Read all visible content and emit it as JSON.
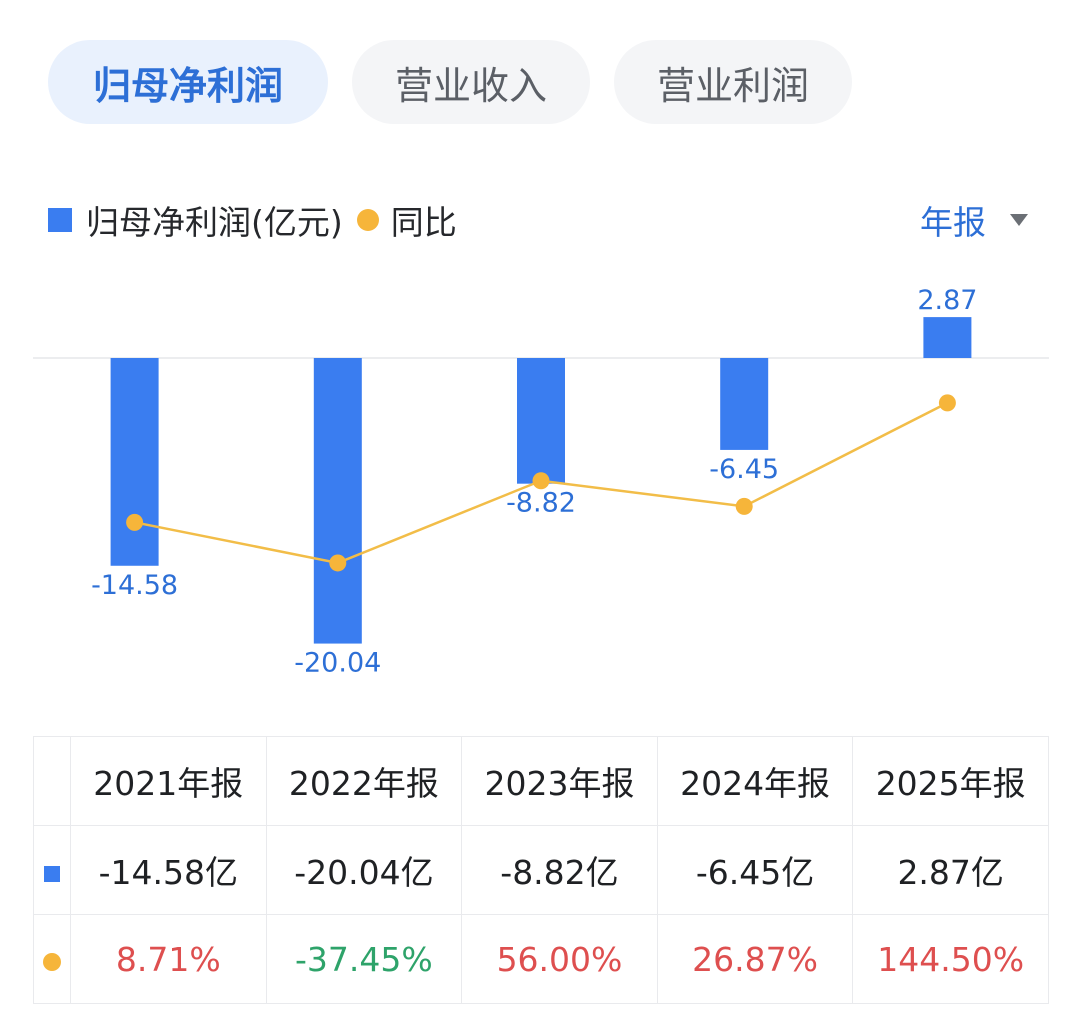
{
  "tabs": [
    {
      "label": "归母净利润",
      "active": true
    },
    {
      "label": "营业收入",
      "active": false
    },
    {
      "label": "营业利润",
      "active": false
    }
  ],
  "legend": {
    "bar_label": "归母净利润(亿元)",
    "line_label": "同比"
  },
  "period_selector": {
    "label": "年报",
    "icon": "triangle-down-icon"
  },
  "colors": {
    "bar": "#3a7df0",
    "line": "#f6b53a",
    "positive": "#de4f4f",
    "negative": "#2ea36a",
    "accent": "#2d6fd6"
  },
  "chart_data": {
    "type": "bar",
    "categories": [
      "2021年报",
      "2022年报",
      "2023年报",
      "2024年报",
      "2025年报"
    ],
    "series": [
      {
        "name": "归母净利润(亿元)",
        "type": "bar",
        "values": [
          -14.58,
          -20.04,
          -8.82,
          -6.45,
          2.87
        ],
        "value_labels": [
          "-14.58",
          "-20.04",
          "-8.82",
          "-6.45",
          "2.87"
        ]
      },
      {
        "name": "同比",
        "type": "line",
        "values": [
          8.71,
          -37.45,
          56.0,
          26.87,
          144.5
        ],
        "unit": "%"
      }
    ],
    "grid": false,
    "legend_position": "top-left"
  },
  "table": {
    "headers": [
      "2021年报",
      "2022年报",
      "2023年报",
      "2024年报",
      "2025年报"
    ],
    "values": [
      "-14.58亿",
      "-20.04亿",
      "-8.82亿",
      "-6.45亿",
      "2.87亿"
    ],
    "yoy": [
      "8.71%",
      "-37.45%",
      "56.00%",
      "26.87%",
      "144.50%"
    ]
  }
}
